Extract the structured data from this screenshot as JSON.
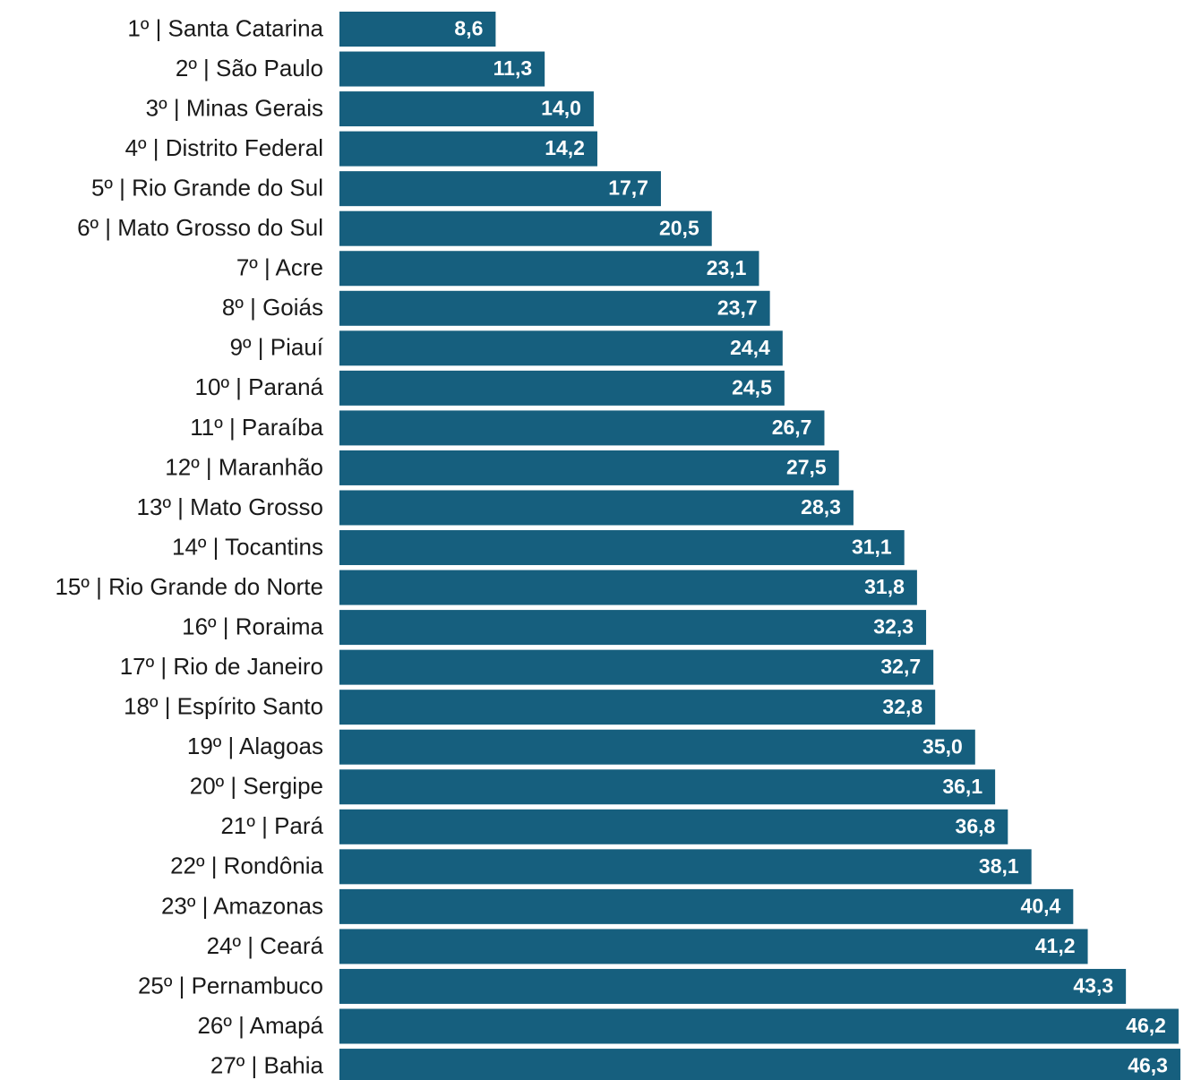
{
  "chart_data": {
    "type": "barh",
    "categories": [
      "1º | Santa Catarina",
      "2º | São Paulo",
      "3º | Minas Gerais",
      "4º | Distrito Federal",
      "5º | Rio Grande do Sul",
      "6º | Mato Grosso do Sul",
      "7º | Acre",
      "8º | Goiás",
      "9º | Piauí",
      "10º | Paraná",
      "11º | Paraíba",
      "12º | Maranhão",
      "13º | Mato Grosso",
      "14º | Tocantins",
      "15º | Rio Grande do Norte",
      "16º | Roraima",
      "17º | Rio de Janeiro",
      "18º | Espírito Santo",
      "19º | Alagoas",
      "20º | Sergipe",
      "21º | Pará",
      "22º | Rondônia",
      "23º | Amazonas",
      "24º | Ceará",
      "25º | Pernambuco",
      "26º | Amapá",
      "27º | Bahia"
    ],
    "values": [
      8.6,
      11.3,
      14.0,
      14.2,
      17.7,
      20.5,
      23.1,
      23.7,
      24.4,
      24.5,
      26.7,
      27.5,
      28.3,
      31.1,
      31.8,
      32.3,
      32.7,
      32.8,
      35.0,
      36.1,
      36.8,
      38.1,
      40.4,
      41.2,
      43.3,
      46.2,
      46.3
    ],
    "value_labels": [
      "8,6",
      "11,3",
      "14,0",
      "14,2",
      "17,7",
      "20,5",
      "23,1",
      "23,7",
      "24,4",
      "24,5",
      "26,7",
      "27,5",
      "28,3",
      "31,1",
      "31,8",
      "32,3",
      "32,7",
      "32,8",
      "35,0",
      "36,1",
      "36,8",
      "38,1",
      "40,4",
      "41,2",
      "43,3",
      "46,2",
      "46,3"
    ],
    "color": "#165f7e",
    "xlim": [
      0,
      46.4
    ]
  }
}
